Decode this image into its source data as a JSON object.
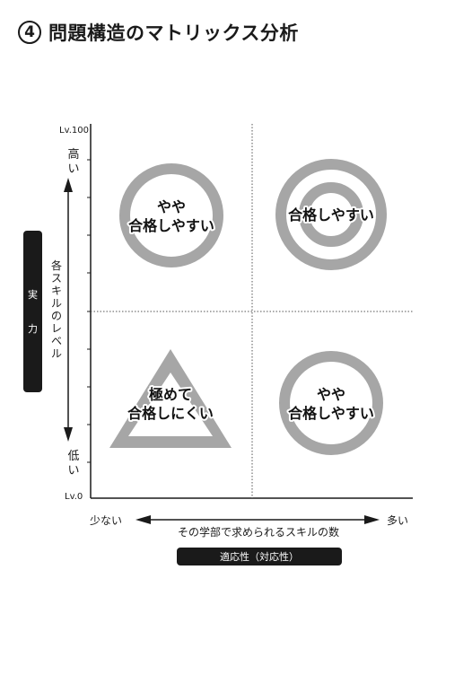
{
  "title": {
    "number": "4",
    "text": "問題構造のマトリックス分析"
  },
  "axis": {
    "y_top": "Lv.100",
    "y_bottom": "Lv.0",
    "y_high": [
      "高",
      "い"
    ],
    "y_low": [
      "低",
      "い"
    ],
    "y_desc": [
      "各",
      "ス",
      "キ",
      "ル",
      "の",
      "レ",
      "ベ",
      "ル"
    ],
    "y_box": [
      "実",
      "力"
    ],
    "x_left": "少ない",
    "x_right": "多い",
    "x_desc": "その学部で求められるスキルの数",
    "x_box": "適応性（対応性）"
  },
  "quadrants": {
    "top_left": [
      "やや",
      "合格しやすい"
    ],
    "top_right": [
      "合格しやすい"
    ],
    "bottom_left": [
      "極めて",
      "合格しにくい"
    ],
    "bottom_right": [
      "やや",
      "合格しやすい"
    ]
  },
  "colors": {
    "shape": "#a6a6a6",
    "dark": "#1a1a1a"
  }
}
